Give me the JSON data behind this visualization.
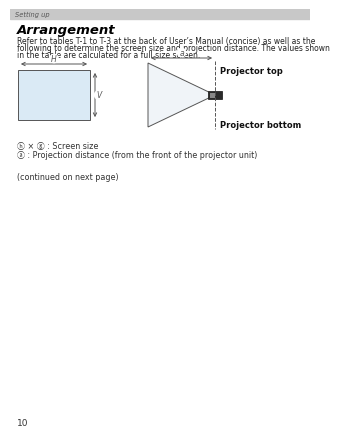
{
  "header_text": "Setting up",
  "header_bg": "#c8c8c8",
  "header_text_color": "#555555",
  "title": "Arrangement",
  "body_line1": "Refer to tables T-1 to T-3 at the back of User’s Manual (concise) as well as the",
  "body_line2": "following to determine the screen size and projection distance. The values shown",
  "body_line3": "in the table are calculated for a full size screen.",
  "legend1": "ⓗ × ⓖ : Screen size",
  "legend2": "ⓐ : Projection distance (from the front of the projector unit)",
  "footer": "(continued on next page)",
  "page_number": "10",
  "bg_color": "#ffffff",
  "screen_fill": "#daeaf5",
  "screen_border": "#555555",
  "diagram_line_color": "#555555"
}
